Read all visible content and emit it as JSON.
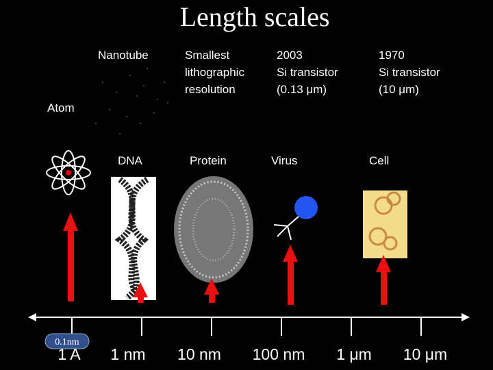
{
  "title": "Length scales",
  "top_labels": [
    {
      "lines": [
        "Nanotube"
      ]
    },
    {
      "lines": [
        "Smallest",
        "lithographic",
        "resolution"
      ]
    },
    {
      "lines": [
        "2003",
        "Si transistor",
        "(0.13 μm)"
      ]
    },
    {
      "lines": [
        "1970",
        "Si transistor",
        "(10 μm)"
      ]
    }
  ],
  "objects": [
    "Atom",
    "DNA",
    "Protein",
    "Virus",
    "Cell"
  ],
  "scale": [
    "1 A",
    "1 nm",
    "10 nm",
    "100 nm",
    "1 μm",
    "10 μm"
  ],
  "badge": "0.1nm"
}
